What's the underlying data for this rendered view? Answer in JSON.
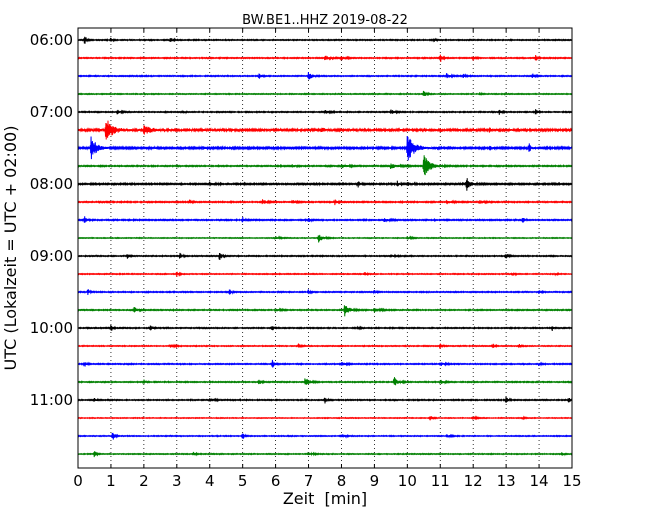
{
  "chart_data": {
    "type": "line",
    "title": "BW.BE1..HHZ 2019-08-22",
    "xlabel": "Zeit  [min]",
    "ylabel": "UTC (Lokalzeit = UTC + 02:00)",
    "xlim": [
      0,
      15
    ],
    "x_ticks": [
      "0",
      "1",
      "2",
      "3",
      "4",
      "5",
      "6",
      "7",
      "8",
      "9",
      "10",
      "11",
      "12",
      "13",
      "14",
      "15"
    ],
    "y_ticks": [
      "06:00",
      "07:00",
      "08:00",
      "09:00",
      "10:00",
      "11:00"
    ],
    "grid": "vertical dotted",
    "series": [
      {
        "row": 0,
        "baseline": "06:00",
        "color": "#000000",
        "noise": 0.4,
        "events": [
          {
            "x": 0.2,
            "amp": 5,
            "w": 0.05
          },
          {
            "x": 2.8,
            "amp": 3,
            "w": 0.05
          },
          {
            "x": 1.0,
            "amp": 1.8,
            "w": 0.05
          },
          {
            "x": 10.8,
            "amp": 2,
            "w": 0.05
          }
        ]
      },
      {
        "row": 1,
        "baseline": "06:15",
        "color": "#ff0000",
        "noise": 0.4,
        "events": [
          {
            "x": 7.5,
            "amp": 2.5,
            "w": 0.1
          },
          {
            "x": 8.0,
            "amp": 2,
            "w": 0.1
          },
          {
            "x": 11.0,
            "amp": 5,
            "w": 0.05
          },
          {
            "x": 12.0,
            "amp": 2.5,
            "w": 0.05
          },
          {
            "x": 13.9,
            "amp": 4,
            "w": 0.05
          }
        ]
      },
      {
        "row": 2,
        "baseline": "06:30",
        "color": "#0000ff",
        "noise": 0.4,
        "events": [
          {
            "x": 5.5,
            "amp": 3,
            "w": 0.05
          },
          {
            "x": 7.0,
            "amp": 4,
            "w": 0.1
          },
          {
            "x": 11.2,
            "amp": 2.5,
            "w": 0.1
          },
          {
            "x": 11.7,
            "amp": 2,
            "w": 0.05
          },
          {
            "x": 13.8,
            "amp": 3,
            "w": 0.05
          }
        ]
      },
      {
        "row": 3,
        "baseline": "06:45",
        "color": "#008000",
        "noise": 0.35,
        "events": [
          {
            "x": 10.5,
            "amp": 4,
            "w": 0.05
          },
          {
            "x": 12.2,
            "amp": 1.5,
            "w": 0.05
          }
        ]
      },
      {
        "row": 4,
        "baseline": "07:00",
        "color": "#000000",
        "noise": 0.4,
        "events": [
          {
            "x": 1.2,
            "amp": 2,
            "w": 0.1
          },
          {
            "x": 3.2,
            "amp": 1.5,
            "w": 0.05
          },
          {
            "x": 7.5,
            "amp": 2,
            "w": 0.1
          },
          {
            "x": 9.5,
            "amp": 2.5,
            "w": 0.1
          },
          {
            "x": 12.8,
            "amp": 3,
            "w": 0.05
          },
          {
            "x": 13.9,
            "amp": 3.5,
            "w": 0.05
          }
        ]
      },
      {
        "row": 5,
        "baseline": "07:15",
        "color": "#ff0000",
        "noise": 0.9,
        "events": [
          {
            "x": 0.85,
            "amp": 12,
            "w": 0.18
          },
          {
            "x": 2.0,
            "amp": 5,
            "w": 0.2
          },
          {
            "x": 7.4,
            "amp": 2,
            "w": 0.1
          },
          {
            "x": 11.0,
            "amp": 2,
            "w": 0.05
          },
          {
            "x": 12.5,
            "amp": 2,
            "w": 0.1
          }
        ]
      },
      {
        "row": 6,
        "baseline": "07:30",
        "color": "#0000ff",
        "noise": 0.7,
        "events": [
          {
            "x": 0.4,
            "amp": 12,
            "w": 0.15
          },
          {
            "x": 3.8,
            "amp": 2,
            "w": 0.05
          },
          {
            "x": 10.0,
            "amp": 15,
            "w": 0.18
          },
          {
            "x": 13.7,
            "amp": 5,
            "w": 0.05
          },
          {
            "x": 12.5,
            "amp": 2,
            "w": 0.1
          }
        ]
      },
      {
        "row": 7,
        "baseline": "07:45",
        "color": "#008000",
        "noise": 0.45,
        "events": [
          {
            "x": 10.5,
            "amp": 12,
            "w": 0.18
          },
          {
            "x": 9.5,
            "amp": 3,
            "w": 0.15
          },
          {
            "x": 8.0,
            "amp": 2,
            "w": 0.15
          },
          {
            "x": 6.5,
            "amp": 1.5,
            "w": 0.1
          }
        ]
      },
      {
        "row": 8,
        "baseline": "08:00",
        "color": "#000000",
        "noise": 0.55,
        "events": [
          {
            "x": 8.5,
            "amp": 4,
            "w": 0.05
          },
          {
            "x": 9.7,
            "amp": 3,
            "w": 0.05
          },
          {
            "x": 11.8,
            "amp": 7,
            "w": 0.1
          },
          {
            "x": 4.0,
            "amp": 2,
            "w": 0.1
          },
          {
            "x": 10.0,
            "amp": 2,
            "w": 0.1
          }
        ]
      },
      {
        "row": 9,
        "baseline": "08:15",
        "color": "#ff0000",
        "noise": 0.45,
        "events": [
          {
            "x": 3.4,
            "amp": 2,
            "w": 0.05
          },
          {
            "x": 5.6,
            "amp": 2.5,
            "w": 0.1
          },
          {
            "x": 6.5,
            "amp": 2,
            "w": 0.1
          },
          {
            "x": 7.8,
            "amp": 3,
            "w": 0.05
          },
          {
            "x": 11.2,
            "amp": 2,
            "w": 0.1
          },
          {
            "x": 12.2,
            "amp": 2,
            "w": 0.1
          }
        ]
      },
      {
        "row": 10,
        "baseline": "08:30",
        "color": "#0000ff",
        "noise": 0.45,
        "events": [
          {
            "x": 0.2,
            "amp": 4,
            "w": 0.05
          },
          {
            "x": 5.0,
            "amp": 3,
            "w": 0.05
          },
          {
            "x": 7.0,
            "amp": 3,
            "w": 0.05
          },
          {
            "x": 9.3,
            "amp": 2,
            "w": 0.1
          },
          {
            "x": 13.5,
            "amp": 3,
            "w": 0.05
          }
        ]
      },
      {
        "row": 11,
        "baseline": "08:45",
        "color": "#008000",
        "noise": 0.3,
        "events": [
          {
            "x": 7.3,
            "amp": 5,
            "w": 0.1
          },
          {
            "x": 6.0,
            "amp": 1.5,
            "w": 0.1
          },
          {
            "x": 10.0,
            "amp": 1.5,
            "w": 0.1
          }
        ]
      },
      {
        "row": 12,
        "baseline": "09:00",
        "color": "#000000",
        "noise": 0.4,
        "events": [
          {
            "x": 1.5,
            "amp": 2.5,
            "w": 0.05
          },
          {
            "x": 3.1,
            "amp": 4,
            "w": 0.05
          },
          {
            "x": 4.3,
            "amp": 5,
            "w": 0.05
          },
          {
            "x": 13.0,
            "amp": 3,
            "w": 0.05
          },
          {
            "x": 9.5,
            "amp": 1.5,
            "w": 0.1
          }
        ]
      },
      {
        "row": 13,
        "baseline": "09:15",
        "color": "#ff0000",
        "noise": 0.35,
        "events": [
          {
            "x": 3.0,
            "amp": 2.5,
            "w": 0.05
          },
          {
            "x": 8.7,
            "amp": 2,
            "w": 0.05
          },
          {
            "x": 13.2,
            "amp": 2,
            "w": 0.05
          },
          {
            "x": 14.5,
            "amp": 1.5,
            "w": 0.05
          }
        ]
      },
      {
        "row": 14,
        "baseline": "09:30",
        "color": "#0000ff",
        "noise": 0.4,
        "events": [
          {
            "x": 0.3,
            "amp": 3,
            "w": 0.05
          },
          {
            "x": 4.6,
            "amp": 3,
            "w": 0.05
          },
          {
            "x": 7.0,
            "amp": 2.5,
            "w": 0.05
          },
          {
            "x": 9.0,
            "amp": 2,
            "w": 0.05
          },
          {
            "x": 14.0,
            "amp": 2,
            "w": 0.05
          }
        ]
      },
      {
        "row": 15,
        "baseline": "09:45",
        "color": "#008000",
        "noise": 0.4,
        "events": [
          {
            "x": 1.7,
            "amp": 3,
            "w": 0.1
          },
          {
            "x": 8.1,
            "amp": 6,
            "w": 0.12
          },
          {
            "x": 9.0,
            "amp": 2,
            "w": 0.15
          },
          {
            "x": 6.0,
            "amp": 1.5,
            "w": 0.1
          }
        ]
      },
      {
        "row": 16,
        "baseline": "10:00",
        "color": "#000000",
        "noise": 0.4,
        "events": [
          {
            "x": 1.0,
            "amp": 4,
            "w": 0.05
          },
          {
            "x": 2.2,
            "amp": 3,
            "w": 0.05
          },
          {
            "x": 5.9,
            "amp": 3,
            "w": 0.05
          },
          {
            "x": 8.5,
            "amp": 2,
            "w": 0.05
          },
          {
            "x": 14.4,
            "amp": 2.5,
            "w": 0.05
          }
        ]
      },
      {
        "row": 17,
        "baseline": "10:15",
        "color": "#ff0000",
        "noise": 0.35,
        "events": [
          {
            "x": 2.8,
            "amp": 2,
            "w": 0.1
          },
          {
            "x": 6.7,
            "amp": 3,
            "w": 0.05
          },
          {
            "x": 11.0,
            "amp": 4,
            "w": 0.05
          },
          {
            "x": 12.6,
            "amp": 2.5,
            "w": 0.05
          },
          {
            "x": 13.4,
            "amp": 2,
            "w": 0.05
          }
        ]
      },
      {
        "row": 18,
        "baseline": "10:30",
        "color": "#0000ff",
        "noise": 0.4,
        "events": [
          {
            "x": 0.2,
            "amp": 3,
            "w": 0.05
          },
          {
            "x": 5.9,
            "amp": 5,
            "w": 0.05
          },
          {
            "x": 8.0,
            "amp": 2,
            "w": 0.1
          },
          {
            "x": 11.0,
            "amp": 2,
            "w": 0.1
          },
          {
            "x": 14.0,
            "amp": 2,
            "w": 0.05
          }
        ]
      },
      {
        "row": 19,
        "baseline": "10:45",
        "color": "#008000",
        "noise": 0.4,
        "events": [
          {
            "x": 2.0,
            "amp": 2.5,
            "w": 0.05
          },
          {
            "x": 5.5,
            "amp": 3,
            "w": 0.05
          },
          {
            "x": 6.9,
            "amp": 5,
            "w": 0.1
          },
          {
            "x": 9.6,
            "amp": 5,
            "w": 0.1
          },
          {
            "x": 11.0,
            "amp": 2,
            "w": 0.1
          }
        ]
      },
      {
        "row": 20,
        "baseline": "11:00",
        "color": "#000000",
        "noise": 0.4,
        "events": [
          {
            "x": 0.5,
            "amp": 2,
            "w": 0.05
          },
          {
            "x": 4.0,
            "amp": 2,
            "w": 0.1
          },
          {
            "x": 7.5,
            "amp": 3,
            "w": 0.05
          },
          {
            "x": 13.0,
            "amp": 4,
            "w": 0.05
          },
          {
            "x": 14.9,
            "amp": 3,
            "w": 0.05
          }
        ]
      },
      {
        "row": 21,
        "baseline": "11:15",
        "color": "#ff0000",
        "noise": 0.3,
        "events": [
          {
            "x": 10.7,
            "amp": 3,
            "w": 0.05
          },
          {
            "x": 12.0,
            "amp": 1.5,
            "w": 0.1
          },
          {
            "x": 13.5,
            "amp": 1.5,
            "w": 0.05
          }
        ]
      },
      {
        "row": 22,
        "baseline": "11:30",
        "color": "#0000ff",
        "noise": 0.35,
        "events": [
          {
            "x": 1.05,
            "amp": 5,
            "w": 0.05
          },
          {
            "x": 5.0,
            "amp": 4,
            "w": 0.05
          },
          {
            "x": 8.0,
            "amp": 2,
            "w": 0.1
          },
          {
            "x": 11.2,
            "amp": 1.5,
            "w": 0.1
          }
        ]
      },
      {
        "row": 23,
        "baseline": "11:45",
        "color": "#008000",
        "noise": 0.35,
        "events": [
          {
            "x": 0.5,
            "amp": 3,
            "w": 0.05
          },
          {
            "x": 3.5,
            "amp": 2,
            "w": 0.05
          },
          {
            "x": 7.0,
            "amp": 2,
            "w": 0.1
          },
          {
            "x": 14.7,
            "amp": 2.5,
            "w": 0.05
          }
        ]
      }
    ]
  }
}
